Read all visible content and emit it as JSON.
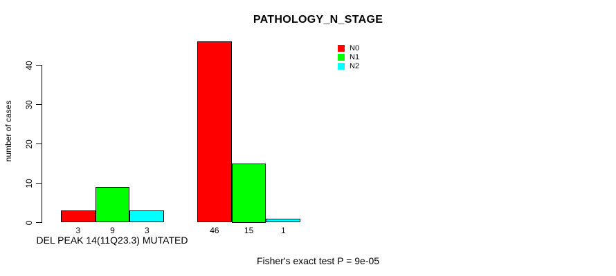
{
  "window": {
    "background_color": "#ffffff",
    "text_color": "#000000"
  },
  "chart_data": {
    "type": "bar",
    "title": "PATHOLOGY_N_STAGE",
    "xlabel": "",
    "ylabel": "number of cases",
    "ylim": [
      0,
      46
    ],
    "yticks": [
      0,
      10,
      20,
      30,
      40
    ],
    "grid": false,
    "bar_border_color": "#000000",
    "categories": [
      "DEL PEAK 14(11Q23.3) MUTATED",
      ""
    ],
    "series": [
      {
        "name": "N0",
        "color": "#ff0000",
        "values": [
          3,
          46
        ]
      },
      {
        "name": "N1",
        "color": "#00ff00",
        "values": [
          9,
          15
        ]
      },
      {
        "name": "N2",
        "color": "#00ffff",
        "values": [
          3,
          1
        ]
      }
    ],
    "bar_value_labels": [
      [
        "3",
        "9",
        "3"
      ],
      [
        "46",
        "15",
        "1"
      ]
    ],
    "legend": {
      "position": "top-right",
      "entries": [
        {
          "label": "N0",
          "color": "#ff0000"
        },
        {
          "label": "N1",
          "color": "#00ff00"
        },
        {
          "label": "N2",
          "color": "#00ffff"
        }
      ]
    },
    "annotation": "Fisher's exact test P = 9e-05"
  }
}
